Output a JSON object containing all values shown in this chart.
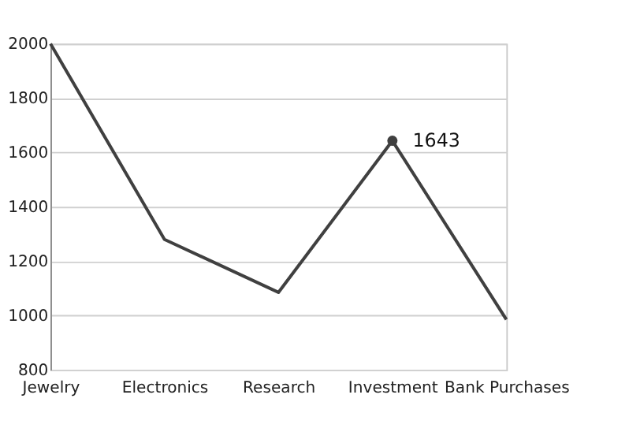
{
  "chart_data": {
    "type": "line",
    "categories": [
      "Jewelry",
      "Electronics",
      "Research",
      "Investment",
      "Bank Purchases"
    ],
    "values": [
      2000,
      1280,
      1085,
      1643,
      985
    ],
    "color": "#404040",
    "ylim": [
      800,
      2000
    ],
    "yticks": [
      800,
      1000,
      1200,
      1400,
      1600,
      1800,
      2000
    ],
    "grid": "y",
    "marker": "none",
    "line_style": "solid",
    "annotations": [
      {
        "text": "1643",
        "x": "Investment",
        "y": 1643
      }
    ]
  }
}
